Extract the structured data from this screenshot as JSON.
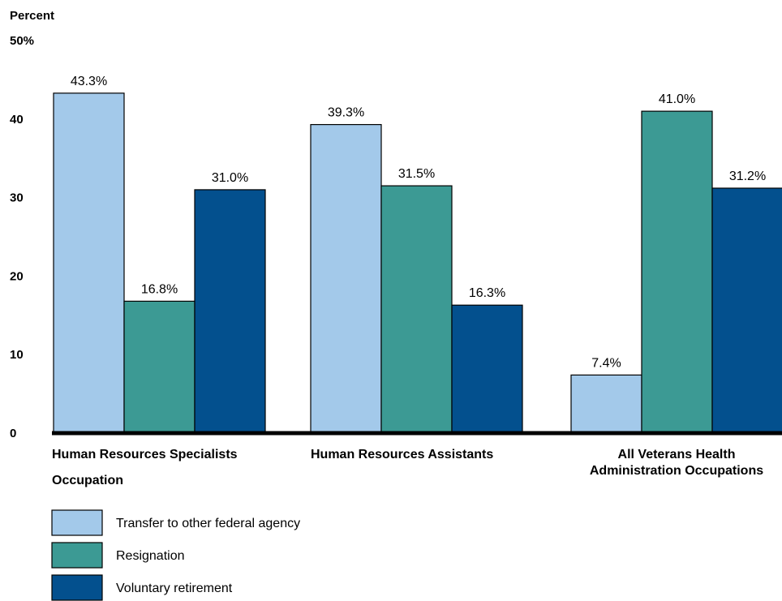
{
  "chart_data": {
    "type": "bar",
    "ylabel": "Percent",
    "ytick_labels": [
      "0",
      "10",
      "20",
      "30",
      "40",
      "50%"
    ],
    "ytick_values": [
      0,
      10,
      20,
      30,
      40,
      50
    ],
    "ylim": [
      0,
      50
    ],
    "xlabel": "Occupation",
    "categories": [
      {
        "lines": [
          "Human Resources Specialists"
        ]
      },
      {
        "lines": [
          "Human Resources Assistants"
        ]
      },
      {
        "lines": [
          "All Veterans Health",
          "Administration Occupations"
        ]
      }
    ],
    "series": [
      {
        "name": "Transfer to other federal agency",
        "color": "#a3c9ea",
        "values": [
          43.3,
          39.3,
          7.4
        ],
        "labels": [
          "43.3%",
          "39.3%",
          "7.4%"
        ]
      },
      {
        "name": "Resignation",
        "color": "#3c9a94",
        "values": [
          16.8,
          31.5,
          41.0
        ],
        "labels": [
          "16.8%",
          "31.5%",
          "41.0%"
        ]
      },
      {
        "name": "Voluntary retirement",
        "color": "#03508e",
        "values": [
          31.0,
          16.3,
          31.2
        ],
        "labels": [
          "31.0%",
          "16.3%",
          "31.2%"
        ]
      }
    ],
    "legend_position": "bottom-left",
    "grid": false
  }
}
